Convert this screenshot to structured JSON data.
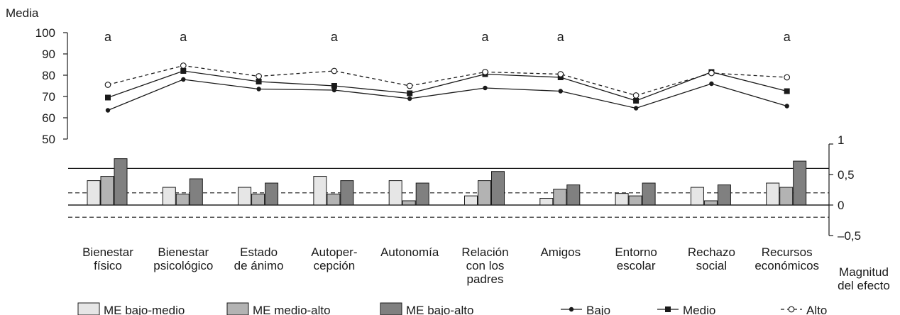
{
  "chart_data": [
    {
      "type": "line",
      "ylabel": "Media",
      "ylim": [
        50,
        100
      ],
      "yticks": [
        50,
        60,
        70,
        80,
        90,
        100
      ],
      "categories": [
        "Bienestar físico",
        "Bienestar psicológico",
        "Estado de ánimo",
        "Autopercepción",
        "Autonomía",
        "Relación con los padres",
        "Amigos",
        "Entorno escolar",
        "Rechazo social",
        "Recursos económicos"
      ],
      "category_labels": [
        [
          "Bienestar",
          "físico"
        ],
        [
          "Bienestar",
          "psicológico"
        ],
        [
          "Estado",
          "de ánimo"
        ],
        [
          "Autoper-",
          "cepción"
        ],
        [
          "Autonomía"
        ],
        [
          "Relación",
          "con los",
          "padres"
        ],
        [
          "Amigos"
        ],
        [
          "Entorno",
          "escolar"
        ],
        [
          "Rechazo",
          "social"
        ],
        [
          "Recursos",
          "económicos"
        ]
      ],
      "significance": [
        "a",
        "a",
        "",
        "a",
        "",
        "a",
        "a",
        "",
        "",
        "a"
      ],
      "series": [
        {
          "name": "Bajo",
          "marker": "filled-circle",
          "line": "solid",
          "values": [
            63.5,
            78,
            73.5,
            73,
            69,
            74,
            72.5,
            64.5,
            76,
            65.5
          ]
        },
        {
          "name": "Medio",
          "marker": "filled-square",
          "line": "solid",
          "values": [
            69.5,
            82,
            77,
            75,
            71.5,
            80.5,
            79,
            68,
            81.5,
            72.5
          ]
        },
        {
          "name": "Alto",
          "marker": "open-circle",
          "line": "dashed",
          "values": [
            75.5,
            84.5,
            79.5,
            82,
            75,
            81.5,
            80.5,
            70.5,
            81,
            79
          ]
        }
      ]
    },
    {
      "type": "bar",
      "ylabel": "Magnitud del efecto",
      "ylabel_lines": [
        "Magnitud",
        "del efecto"
      ],
      "ylim": [
        -0.5,
        1
      ],
      "yticks": [
        {
          "value": 1,
          "label": "1"
        },
        {
          "value": 0.5,
          "label": "0,5"
        },
        {
          "value": 0,
          "label": "0"
        },
        {
          "value": -0.5,
          "label": "–0,5"
        }
      ],
      "reference_lines": [
        {
          "value": 0.6,
          "style": "solid"
        },
        {
          "value": 0.2,
          "style": "dashed"
        },
        {
          "value": 0,
          "style": "solid"
        },
        {
          "value": -0.2,
          "style": "dashed"
        }
      ],
      "series": [
        {
          "name": "ME bajo-medio",
          "color": "#e6e6e6",
          "values": [
            0.4,
            0.29,
            0.29,
            0.47,
            0.4,
            0.15,
            0.11,
            0.19,
            0.29,
            0.36
          ]
        },
        {
          "name": "ME medio-alto",
          "color": "#b3b3b3",
          "values": [
            0.47,
            0.18,
            0.18,
            0.18,
            0.07,
            0.4,
            0.26,
            0.15,
            0.07,
            0.29
          ]
        },
        {
          "name": "ME bajo-alto",
          "color": "#808080",
          "values": [
            0.76,
            0.43,
            0.36,
            0.4,
            0.36,
            0.55,
            0.33,
            0.36,
            0.33,
            0.72
          ]
        }
      ]
    }
  ]
}
